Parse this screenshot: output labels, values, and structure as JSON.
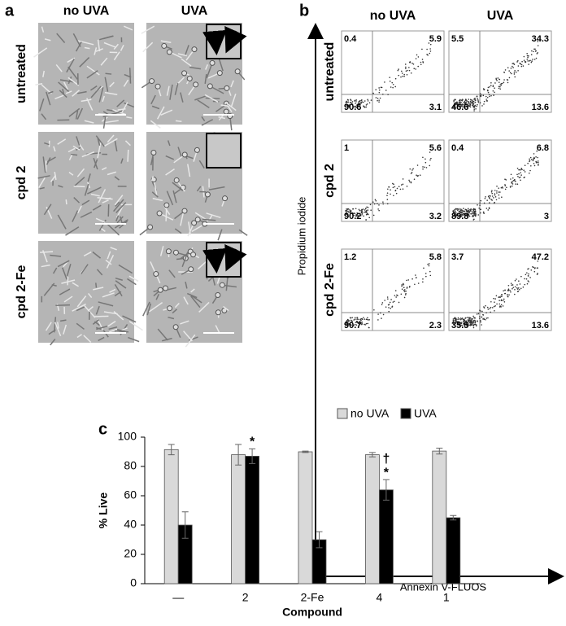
{
  "panel_a": {
    "label": "a",
    "columns": [
      "no UVA",
      "UVA"
    ],
    "rows": [
      "untreated",
      "cpd 2",
      "cpd 2-Fe"
    ]
  },
  "panel_b": {
    "label": "b",
    "columns": [
      "no UVA",
      "UVA"
    ],
    "rows": [
      "untreated",
      "cpd 2",
      "cpd 2-Fe"
    ],
    "y_label": "Propidium iodide",
    "x_label": "Annexin V-FLUOS",
    "plots": [
      [
        [
          0.4,
          5.9,
          90.6,
          3.1
        ],
        [
          5.5,
          34.3,
          46.6,
          13.6
        ]
      ],
      [
        [
          1,
          5.6,
          90.2,
          3.2
        ],
        [
          0.4,
          6.8,
          89.8,
          3
        ]
      ],
      [
        [
          1.2,
          5.8,
          90.7,
          2.3
        ],
        [
          3.7,
          47.2,
          35.5,
          13.6
        ]
      ]
    ]
  },
  "chart_data": {
    "type": "bar",
    "panel_label": "c",
    "categories": [
      "—",
      "2",
      "2-Fe",
      "4",
      "1"
    ],
    "x_label": "Compound",
    "y_label": "% Live",
    "ylim": [
      0,
      100
    ],
    "yticks": [
      0,
      20,
      40,
      60,
      80,
      100
    ],
    "series": [
      {
        "name": "no UVA",
        "color": "#d9d9d9",
        "values": [
          91.5,
          88,
          90,
          88,
          90.5
        ],
        "errors": [
          3.5,
          7,
          0.5,
          1.5,
          2
        ]
      },
      {
        "name": "UVA",
        "color": "#000000",
        "values": [
          40,
          87,
          30,
          64,
          45
        ],
        "errors": [
          9,
          5,
          5.5,
          7,
          1.5
        ],
        "annotations": [
          null,
          [
            "*"
          ],
          null,
          [
            "†",
            "*"
          ],
          null
        ]
      }
    ]
  }
}
